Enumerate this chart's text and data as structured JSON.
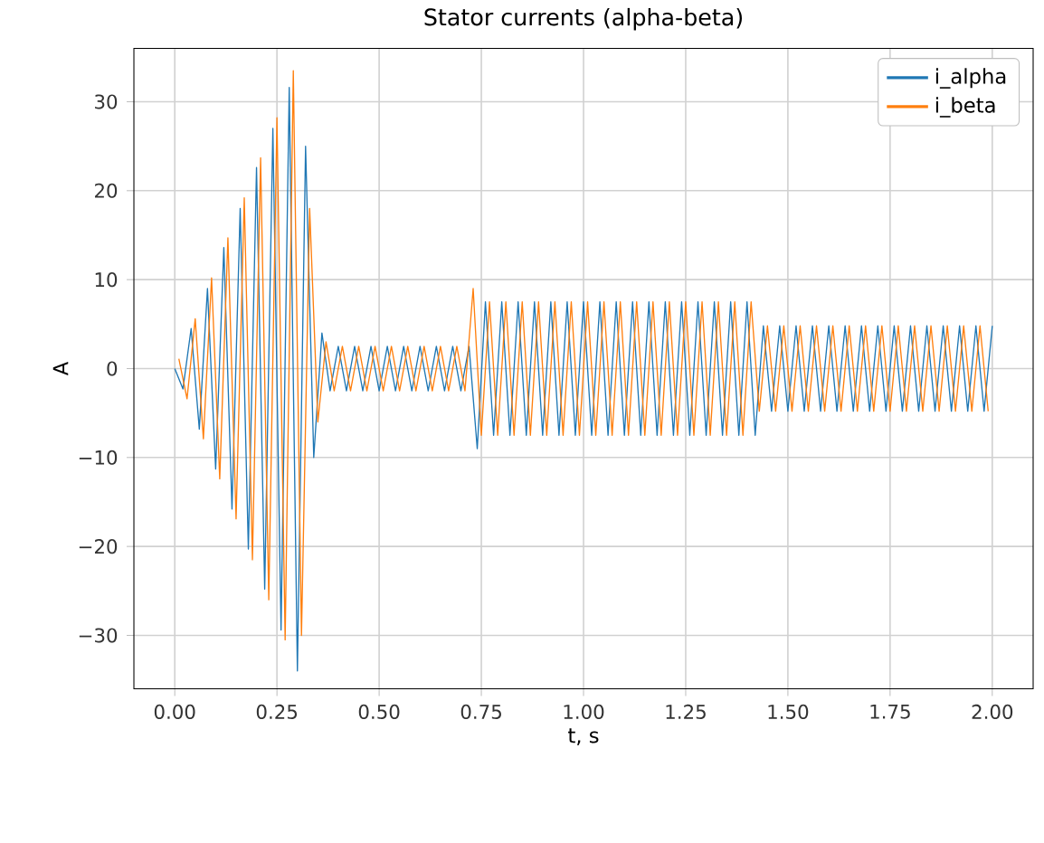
{
  "chart_data": {
    "type": "line",
    "title": "Stator currents (alpha-beta)",
    "xlabel": "t, s",
    "ylabel": "A",
    "xlim": [
      -0.1,
      2.1
    ],
    "ylim": [
      -36,
      36
    ],
    "xticks": [
      {
        "value": 0,
        "label": "0.00"
      },
      {
        "value": 0.25,
        "label": "0.25"
      },
      {
        "value": 0.5,
        "label": "0.50"
      },
      {
        "value": 0.75,
        "label": "0.75"
      },
      {
        "value": 1,
        "label": "1.00"
      },
      {
        "value": 1.25,
        "label": "1.25"
      },
      {
        "value": 1.5,
        "label": "1.50"
      },
      {
        "value": 1.75,
        "label": "1.75"
      },
      {
        "value": 2,
        "label": "2.00"
      }
    ],
    "yticks": [
      {
        "value": -30,
        "label": "−30"
      },
      {
        "value": -20,
        "label": "−20"
      },
      {
        "value": -10,
        "label": "−10"
      },
      0,
      10,
      20,
      30
    ],
    "grid": true,
    "legend": "top right",
    "series": [
      {
        "name": "i_alpha",
        "color": "#1f77b4",
        "x": [
          0,
          0.02,
          0.04,
          0.06,
          0.08,
          0.1,
          0.12,
          0.14,
          0.16,
          0.18,
          0.2,
          0.22,
          0.24,
          0.26,
          0.28,
          0.3,
          0.32,
          0.34,
          0.36,
          0.38,
          0.4,
          0.42,
          0.44,
          0.46,
          0.48,
          0.5,
          0.52,
          0.54,
          0.56,
          0.58,
          0.6,
          0.62,
          0.64,
          0.66,
          0.68,
          0.7,
          0.72,
          0.74,
          0.76,
          0.78,
          0.8,
          0.82,
          0.84,
          0.86,
          0.88,
          0.9,
          0.92,
          0.94,
          0.96,
          0.98,
          1.0,
          1.02,
          1.04,
          1.06,
          1.08,
          1.1,
          1.12,
          1.14,
          1.16,
          1.18,
          1.2,
          1.22,
          1.24,
          1.26,
          1.28,
          1.3,
          1.32,
          1.34,
          1.36,
          1.38,
          1.4,
          1.42,
          1.44,
          1.46,
          1.48,
          1.5,
          1.52,
          1.54,
          1.56,
          1.58,
          1.6,
          1.62,
          1.64,
          1.66,
          1.68,
          1.7,
          1.72,
          1.74,
          1.76,
          1.78,
          1.8,
          1.82,
          1.84,
          1.86,
          1.88,
          1.9,
          1.92,
          1.94,
          1.96,
          1.98,
          2.0
        ],
        "values": [
          0,
          -2.3,
          4.5,
          -6.8,
          9,
          -11.3,
          13.6,
          -15.8,
          18,
          -20.3,
          22.6,
          -24.8,
          27,
          -29.4,
          31.6,
          -34,
          25,
          -10,
          4,
          -2.5,
          2.5,
          -2.5,
          2.5,
          -2.5,
          2.5,
          -2.5,
          2.5,
          -2.5,
          2.5,
          -2.5,
          2.5,
          -2.5,
          2.5,
          -2.5,
          2.5,
          -2.5,
          2.5,
          -9,
          7.5,
          -7.5,
          7.5,
          -7.5,
          7.5,
          -7.5,
          7.5,
          -7.5,
          7.5,
          -7.5,
          7.5,
          -7.5,
          7.5,
          -7.5,
          7.5,
          -7.5,
          7.5,
          -7.5,
          7.5,
          -7.5,
          7.5,
          -7.5,
          7.5,
          -7.5,
          7.5,
          -7.5,
          7.5,
          -7.5,
          7.5,
          -7.5,
          7.5,
          -7.5,
          7.5,
          -7.5,
          4.8,
          -4.8,
          4.8,
          -4.8,
          4.8,
          -4.8,
          4.8,
          -4.8,
          4.8,
          -4.8,
          4.8,
          -4.8,
          4.8,
          -4.8,
          4.8,
          -4.8,
          4.8,
          -4.8,
          4.8,
          -4.8,
          4.8,
          -4.8,
          4.8,
          -4.8,
          4.8,
          -4.8,
          4.8,
          -4.8,
          4.8
        ]
      },
      {
        "name": "i_beta",
        "color": "#ff7f0e",
        "x": [
          0.01,
          0.03,
          0.05,
          0.07,
          0.09,
          0.11,
          0.13,
          0.15,
          0.17,
          0.19,
          0.21,
          0.23,
          0.25,
          0.27,
          0.29,
          0.31,
          0.33,
          0.35,
          0.37,
          0.39,
          0.41,
          0.43,
          0.45,
          0.47,
          0.49,
          0.51,
          0.53,
          0.55,
          0.57,
          0.59,
          0.61,
          0.63,
          0.65,
          0.67,
          0.69,
          0.71,
          0.73,
          0.75,
          0.77,
          0.79,
          0.81,
          0.83,
          0.85,
          0.87,
          0.89,
          0.91,
          0.93,
          0.95,
          0.97,
          0.99,
          1.01,
          1.03,
          1.05,
          1.07,
          1.09,
          1.11,
          1.13,
          1.15,
          1.17,
          1.19,
          1.21,
          1.23,
          1.25,
          1.27,
          1.29,
          1.31,
          1.33,
          1.35,
          1.37,
          1.39,
          1.41,
          1.43,
          1.45,
          1.47,
          1.49,
          1.51,
          1.53,
          1.55,
          1.57,
          1.59,
          1.61,
          1.63,
          1.65,
          1.67,
          1.69,
          1.71,
          1.73,
          1.75,
          1.77,
          1.79,
          1.81,
          1.83,
          1.85,
          1.87,
          1.89,
          1.91,
          1.93,
          1.95,
          1.97,
          1.99
        ],
        "values": [
          1.1,
          -3.4,
          5.6,
          -7.9,
          10.2,
          -12.4,
          14.7,
          -16.9,
          19.2,
          -21.5,
          23.7,
          -26,
          28.2,
          -30.5,
          33.5,
          -30,
          18,
          -6,
          3,
          -2.5,
          2.5,
          -2.5,
          2.5,
          -2.5,
          2.5,
          -2.5,
          2.5,
          -2.5,
          2.5,
          -2.5,
          2.5,
          -2.5,
          2.5,
          -2.5,
          2.5,
          -2.5,
          9,
          -7.5,
          7.5,
          -7.5,
          7.5,
          -7.5,
          7.5,
          -7.5,
          7.5,
          -7.5,
          7.5,
          -7.5,
          7.5,
          -7.5,
          7.5,
          -7.5,
          7.5,
          -7.5,
          7.5,
          -7.5,
          7.5,
          -7.5,
          7.5,
          -7.5,
          7.5,
          -7.5,
          7.5,
          -7.5,
          7.5,
          -7.5,
          7.5,
          -7.5,
          7.5,
          -7.5,
          7.5,
          -4.8,
          4.8,
          -4.8,
          4.8,
          -4.8,
          4.8,
          -4.8,
          4.8,
          -4.8,
          4.8,
          -4.8,
          4.8,
          -4.8,
          4.8,
          -4.8,
          4.8,
          -4.8,
          4.8,
          -4.8,
          4.8,
          -4.8,
          4.8,
          -4.8,
          4.8,
          -4.8,
          4.8,
          -4.8,
          4.8,
          -4.8
        ]
      }
    ]
  }
}
